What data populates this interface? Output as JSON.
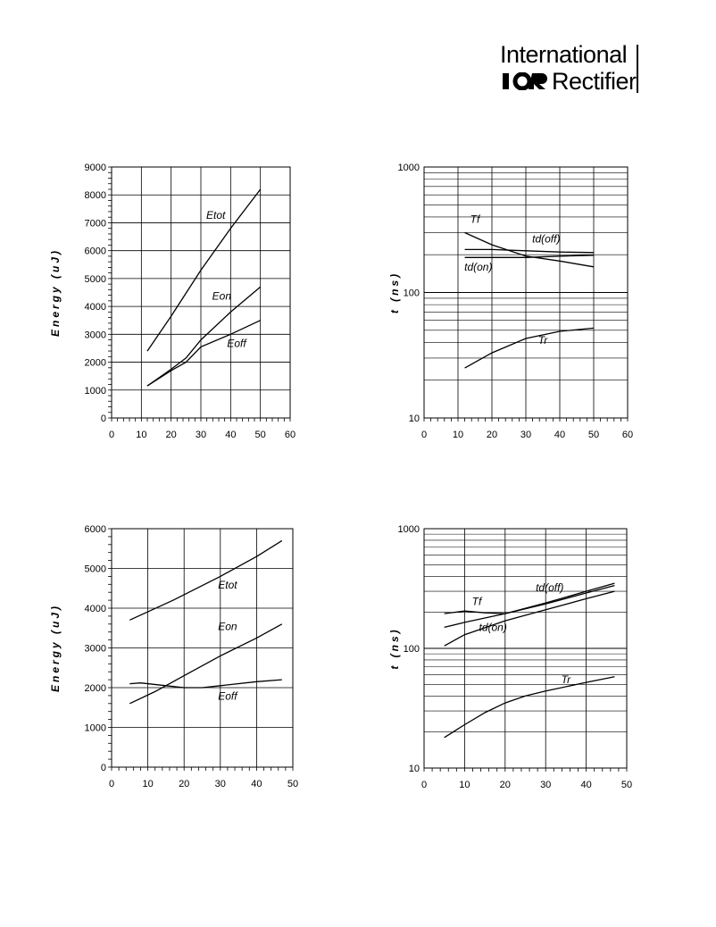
{
  "header": {
    "logo_line1": "International",
    "logo_mark": "IOR",
    "logo_line2": "Rectifier"
  },
  "chart_data": [
    {
      "type": "line",
      "ylabel": "Energy (uJ)",
      "xlim": [
        0,
        60
      ],
      "ylim": [
        0,
        9000
      ],
      "xticks": [
        0,
        10,
        20,
        30,
        40,
        50,
        60
      ],
      "yticks": [
        0,
        1000,
        2000,
        3000,
        4000,
        5000,
        6000,
        7000,
        8000,
        9000
      ],
      "series": [
        {
          "name": "Etot",
          "points": [
            [
              12,
              2400
            ],
            [
              20,
              3650
            ],
            [
              30,
              5300
            ],
            [
              40,
              6800
            ],
            [
              50,
              8200
            ]
          ]
        },
        {
          "name": "Eon",
          "points": [
            [
              12,
              1150
            ],
            [
              20,
              1750
            ],
            [
              25,
              2150
            ],
            [
              30,
              2800
            ],
            [
              40,
              3800
            ],
            [
              50,
              4700
            ]
          ]
        },
        {
          "name": "Eoff",
          "points": [
            [
              12,
              1150
            ],
            [
              20,
              1700
            ],
            [
              25,
              2000
            ],
            [
              30,
              2550
            ],
            [
              40,
              3000
            ],
            [
              50,
              3500
            ]
          ]
        }
      ],
      "labels": [
        {
          "text": "Etot",
          "x": 35,
          "y": 7150
        },
        {
          "text": "Eon",
          "x": 37,
          "y": 4250
        },
        {
          "text": "Eoff",
          "x": 42,
          "y": 2550
        }
      ]
    },
    {
      "type": "line",
      "ylabel": "t (ns)",
      "yscale": "log",
      "xlim": [
        0,
        60
      ],
      "ylim": [
        10,
        1000
      ],
      "xticks": [
        0,
        10,
        20,
        30,
        40,
        50,
        60
      ],
      "yticks": [
        10,
        100,
        1000
      ],
      "series": [
        {
          "name": "Tf",
          "points": [
            [
              12,
              300
            ],
            [
              20,
              240
            ],
            [
              30,
              195
            ],
            [
              40,
              178
            ],
            [
              50,
              160
            ]
          ]
        },
        {
          "name": "td(off)",
          "points": [
            [
              12,
              220
            ],
            [
              20,
              220
            ],
            [
              30,
              215
            ],
            [
              40,
              210
            ],
            [
              50,
              208
            ]
          ]
        },
        {
          "name": "td(on)",
          "points": [
            [
              12,
              190
            ],
            [
              20,
              190
            ],
            [
              30,
              190
            ],
            [
              40,
              195
            ],
            [
              50,
              198
            ]
          ]
        },
        {
          "name": "Tr",
          "points": [
            [
              12,
              25
            ],
            [
              20,
              33
            ],
            [
              30,
              43
            ],
            [
              40,
              49
            ],
            [
              50,
              52
            ]
          ]
        }
      ],
      "labels": [
        {
          "text": "Tf",
          "x": 15,
          "y": 360
        },
        {
          "text": "td(off)",
          "x": 36,
          "y": 250
        },
        {
          "text": "td(on)",
          "x": 16,
          "y": 150
        },
        {
          "text": "Tr",
          "x": 35,
          "y": 39
        }
      ]
    },
    {
      "type": "line",
      "ylabel": "Energy (uJ)",
      "xlim": [
        0,
        50
      ],
      "ylim": [
        0,
        6000
      ],
      "xticks": [
        0,
        10,
        20,
        30,
        40,
        50
      ],
      "yticks": [
        0,
        1000,
        2000,
        3000,
        4000,
        5000,
        6000
      ],
      "series": [
        {
          "name": "Etot",
          "points": [
            [
              5,
              3700
            ],
            [
              17,
              4200
            ],
            [
              30,
              4800
            ],
            [
              40,
              5300
            ],
            [
              47,
              5700
            ]
          ]
        },
        {
          "name": "Eon",
          "points": [
            [
              5,
              1600
            ],
            [
              12,
              1900
            ],
            [
              20,
              2300
            ],
            [
              30,
              2800
            ],
            [
              40,
              3250
            ],
            [
              47,
              3600
            ]
          ]
        },
        {
          "name": "Eoff",
          "points": [
            [
              5,
              2100
            ],
            [
              8,
              2120
            ],
            [
              15,
              2050
            ],
            [
              20,
              2000
            ],
            [
              25,
              2000
            ],
            [
              30,
              2050
            ],
            [
              40,
              2150
            ],
            [
              47,
              2200
            ]
          ]
        }
      ],
      "labels": [
        {
          "text": "Etot",
          "x": 32,
          "y": 4500
        },
        {
          "text": "Eon",
          "x": 32,
          "y": 3450
        },
        {
          "text": "Eoff",
          "x": 32,
          "y": 1700
        }
      ]
    },
    {
      "type": "line",
      "ylabel": "t (ns)",
      "yscale": "log",
      "xlim": [
        0,
        50
      ],
      "ylim": [
        10,
        1000
      ],
      "xticks": [
        0,
        10,
        20,
        30,
        40,
        50
      ],
      "yticks": [
        10,
        100,
        1000
      ],
      "series": [
        {
          "name": "Tf",
          "points": [
            [
              5,
              195
            ],
            [
              10,
              205
            ],
            [
              15,
              198
            ],
            [
              20,
              195
            ],
            [
              30,
              240
            ],
            [
              40,
              300
            ],
            [
              47,
              350
            ]
          ]
        },
        {
          "name": "td(off)",
          "points": [
            [
              5,
              150
            ],
            [
              10,
              165
            ],
            [
              20,
              195
            ],
            [
              30,
              235
            ],
            [
              40,
              290
            ],
            [
              47,
              335
            ]
          ]
        },
        {
          "name": "td(on)",
          "points": [
            [
              5,
              105
            ],
            [
              10,
              130
            ],
            [
              20,
              170
            ],
            [
              30,
              210
            ],
            [
              40,
              260
            ],
            [
              47,
              300
            ]
          ]
        },
        {
          "name": "Tr",
          "points": [
            [
              5,
              18
            ],
            [
              10,
              23
            ],
            [
              15,
              29
            ],
            [
              20,
              35
            ],
            [
              25,
              40
            ],
            [
              30,
              44
            ],
            [
              40,
              52
            ],
            [
              47,
              58
            ]
          ]
        }
      ],
      "labels": [
        {
          "text": "Tf",
          "x": 13,
          "y": 230
        },
        {
          "text": "td(off)",
          "x": 31,
          "y": 300
        },
        {
          "text": "td(on)",
          "x": 17,
          "y": 140
        },
        {
          "text": "Tr",
          "x": 35,
          "y": 51
        }
      ]
    }
  ]
}
